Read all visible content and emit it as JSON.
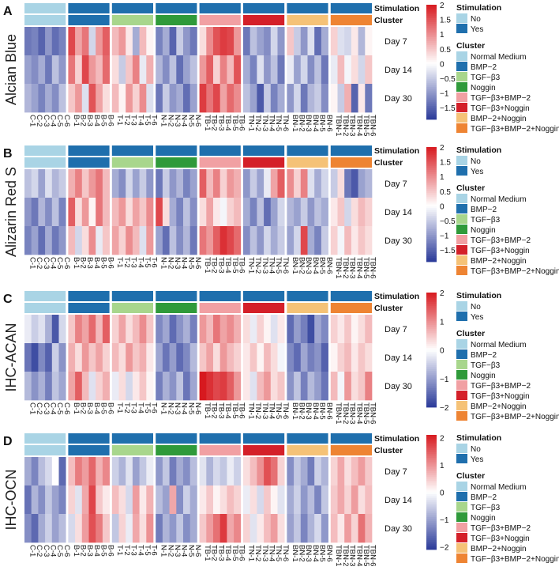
{
  "chart_data": [
    {
      "type": "heatmap",
      "panel_letter": "A",
      "ylabel": "Alcian Blue",
      "rows": [
        "Day 7",
        "Day 14",
        "Day 30"
      ],
      "columns": [
        "C-1",
        "C-2",
        "C-3",
        "C-4",
        "C-5",
        "C-6",
        "B-1",
        "B-2",
        "B-3",
        "B-4",
        "B-5",
        "B-6",
        "T-1",
        "T-2",
        "T-3",
        "T-4",
        "T-5",
        "T-6",
        "N-1",
        "N-2",
        "N-3",
        "N-4",
        "N-5",
        "N-6",
        "TB-1",
        "TB-2",
        "TB-3",
        "TB-4",
        "TB-5",
        "TB-6",
        "TN-1",
        "TN-2",
        "TN-3",
        "TN-4",
        "TN-5",
        "TN-6",
        "BN-1",
        "BN-2",
        "BN-3",
        "BN-4",
        "BN-5",
        "BN-6",
        "TBN-1",
        "TBN-2",
        "TBN-3",
        "TBN-4",
        "TBN-5",
        "TBN-6"
      ],
      "values": [
        [
          -1.3,
          -1.2,
          -1.5,
          -1.0,
          -1.4,
          -1.2,
          1.6,
          0.8,
          1.2,
          -0.4,
          0.9,
          1.4,
          0.6,
          0.9,
          0.2,
          -0.8,
          0.6,
          0.1,
          -1.2,
          -0.8,
          -1.5,
          -0.5,
          -1.0,
          -1.3,
          0.3,
          1.0,
          1.5,
          1.7,
          1.6,
          0.9,
          -1.3,
          -0.6,
          -0.9,
          -1.1,
          -0.4,
          -1.0,
          0.5,
          -0.5,
          -1.0,
          -0.3,
          -1.4,
          -0.8,
          0.4,
          -0.3,
          -0.4,
          0.2,
          -0.7,
          0.1
        ],
        [
          -0.9,
          -1.1,
          -0.8,
          -1.3,
          -0.6,
          -1.0,
          1.2,
          0.4,
          1.6,
          0.9,
          0.6,
          1.3,
          0.3,
          -0.5,
          0.5,
          1.1,
          -0.2,
          0.7,
          -0.7,
          -1.1,
          -0.6,
          -1.4,
          -0.9,
          -0.6,
          0.9,
          1.4,
          0.4,
          1.1,
          0.6,
          1.5,
          -0.8,
          -1.2,
          -0.3,
          -1.0,
          -0.6,
          -1.3,
          -0.2,
          -0.9,
          -0.4,
          -1.1,
          -0.6,
          -1.3,
          -0.2,
          0.6,
          -0.1,
          0.3,
          -0.4,
          0.5
        ],
        [
          -0.7,
          -0.9,
          -1.2,
          -0.8,
          -1.1,
          -0.6,
          0.5,
          0.9,
          -0.3,
          1.5,
          0.8,
          0.3,
          0.6,
          0.1,
          0.9,
          0.4,
          1.0,
          -0.3,
          -1.3,
          -0.5,
          -1.0,
          -0.8,
          -1.4,
          -0.9,
          1.7,
          1.2,
          1.6,
          0.8,
          1.3,
          1.0,
          -0.6,
          -0.9,
          -1.6,
          -0.5,
          -1.2,
          -0.8,
          -1.0,
          -0.4,
          -1.3,
          -0.7,
          -0.5,
          -1.1,
          0.1,
          -0.5,
          0.7,
          -1.5,
          0.2,
          -1.3
        ]
      ],
      "colorbar": {
        "min": -1.9,
        "max": 2.0,
        "ticks": [
          2,
          1.5,
          1,
          0.5,
          0,
          -0.5,
          -1,
          -1.5
        ],
        "tick_labels": [
          "2",
          "1.5",
          "1",
          "0.5",
          "0",
          "−0.5",
          "−1",
          "−1.5"
        ]
      }
    },
    {
      "type": "heatmap",
      "panel_letter": "B",
      "ylabel": "Alizarin Red S",
      "rows": [
        "Day 7",
        "Day 14",
        "Day 30"
      ],
      "columns": [
        "C-1",
        "C-2",
        "C-3",
        "C-4",
        "C-5",
        "C-6",
        "B-1",
        "B-2",
        "B-3",
        "B-4",
        "B-5",
        "B-6",
        "T-1",
        "T-2",
        "T-3",
        "T-4",
        "T-5",
        "T-6",
        "N-1",
        "N-2",
        "N-3",
        "N-4",
        "N-5",
        "N-6",
        "TB-1",
        "TB-2",
        "TB-3",
        "TB-4",
        "TB-5",
        "TB-6",
        "TN-1",
        "TN-2",
        "TN-3",
        "TN-4",
        "TN-5",
        "TN-6",
        "BN-1",
        "BN-2",
        "BN-3",
        "BN-4",
        "BN-5",
        "BN-6",
        "TBN-1",
        "TBN-2",
        "TBN-3",
        "TBN-4",
        "TBN-5",
        "TBN-6"
      ],
      "values": [
        [
          -0.6,
          -0.4,
          -0.9,
          -0.3,
          -0.7,
          -0.5,
          0.7,
          1.1,
          0.5,
          0.9,
          1.2,
          0.6,
          -0.8,
          -1.1,
          -0.4,
          -0.9,
          -0.5,
          -1.0,
          -1.3,
          -0.5,
          -1.0,
          -0.7,
          -1.2,
          -0.9,
          1.4,
          0.6,
          1.1,
          0.4,
          0.9,
          0.7,
          -1.0,
          -0.5,
          -0.9,
          -0.2,
          0.8,
          1.4,
          1.0,
          0.4,
          1.1,
          -0.3,
          -0.8,
          -0.4,
          -0.5,
          0.3,
          -1.3,
          -1.6,
          -0.9,
          -0.7
        ],
        [
          -1.0,
          -1.3,
          -0.7,
          -1.1,
          -0.6,
          -1.2,
          1.4,
          0.3,
          0.9,
          0.1,
          1.2,
          0.6,
          0.6,
          0.9,
          0.3,
          0.8,
          0.5,
          1.0,
          1.6,
          0.3,
          -0.8,
          -1.2,
          -0.6,
          -1.1,
          0.3,
          0.8,
          0.2,
          -0.1,
          0.4,
          0.6,
          -0.8,
          -1.2,
          -0.6,
          -1.4,
          -0.9,
          -0.4,
          -0.7,
          -0.9,
          -0.5,
          -1.0,
          -0.6,
          -0.8,
          0.2,
          0.5,
          -0.4,
          0.3,
          0.6,
          0.4
        ],
        [
          -1.2,
          -0.9,
          -1.4,
          -0.8,
          -1.3,
          -1.0,
          0.6,
          -0.4,
          0.3,
          1.0,
          -0.2,
          0.5,
          0.8,
          0.4,
          1.0,
          0.6,
          -0.3,
          0.9,
          -0.9,
          -1.4,
          -0.6,
          -1.1,
          -0.7,
          -1.3,
          1.2,
          0.9,
          1.4,
          1.8,
          1.6,
          1.3,
          -1.1,
          -0.6,
          -1.0,
          -0.4,
          -0.8,
          -0.5,
          -0.9,
          -0.4,
          1.6,
          -0.8,
          -1.2,
          -0.5,
          0.4,
          -0.1,
          0.6,
          0.2,
          0.5,
          0.3
        ]
      ],
      "colorbar": {
        "min": -1.9,
        "max": 2.0,
        "ticks": [
          2,
          1.5,
          1,
          0.5,
          0,
          -0.5,
          -1,
          -1.5
        ],
        "tick_labels": [
          "2",
          "1.5",
          "1",
          "0.5",
          "0",
          "−0.5",
          "−1",
          "−1.5"
        ]
      }
    },
    {
      "type": "heatmap",
      "panel_letter": "C",
      "ylabel": "IHC-ACAN",
      "rows": [
        "Day 7",
        "Day 14",
        "Day 30"
      ],
      "columns": [
        "C-1",
        "C-2",
        "C-3",
        "C-4",
        "C-5",
        "C-6",
        "B-1",
        "B-2",
        "B-3",
        "B-4",
        "B-5",
        "B-6",
        "T-1",
        "T-2",
        "T-3",
        "T-4",
        "T-5",
        "T-6",
        "N-1",
        "N-2",
        "N-3",
        "N-4",
        "N-5",
        "N-6",
        "TB-1",
        "TB-2",
        "TB-3",
        "TB-4",
        "TB-5",
        "TB-6",
        "TN-1",
        "TN-2",
        "TN-3",
        "TN-4",
        "TN-5",
        "TN-6",
        "BN-1",
        "BN-2",
        "BN-3",
        "BN-4",
        "BN-5",
        "BN-6",
        "TBN-1",
        "TBN-2",
        "TBN-3",
        "TBN-4",
        "TBN-5",
        "TBN-6"
      ],
      "values": [
        [
          -0.2,
          -0.5,
          -0.3,
          -0.8,
          -1.7,
          -0.4,
          0.5,
          1.1,
          0.8,
          1.3,
          0.6,
          1.4,
          0.4,
          0.8,
          0.3,
          0.6,
          1.0,
          0.5,
          -1.2,
          -0.9,
          -1.5,
          -1.1,
          -0.8,
          -1.3,
          0.9,
          0.6,
          1.2,
          0.8,
          1.0,
          0.7,
          0.3,
          -0.2,
          0.4,
          0.1,
          -0.3,
          0.2,
          -1.5,
          -1.0,
          -1.3,
          -1.8,
          -0.9,
          -1.2,
          0.4,
          0.2,
          0.5,
          0.1,
          0.3,
          0.6
        ],
        [
          -1.4,
          -1.8,
          -1.2,
          -1.6,
          -0.5,
          -1.1,
          0.7,
          0.3,
          0.9,
          0.5,
          0.8,
          0.4,
          0.6,
          0.3,
          0.9,
          0.5,
          0.7,
          0.2,
          -0.9,
          -1.4,
          -1.0,
          -1.5,
          -1.2,
          -0.7,
          0.5,
          0.8,
          0.3,
          0.9,
          0.6,
          0.4,
          0.2,
          0.5,
          0.1,
          0.6,
          0.3,
          -0.1,
          -1.2,
          -1.5,
          -0.9,
          -1.3,
          -1.1,
          -1.6,
          0.1,
          0.4,
          0.6,
          0.2,
          0.5,
          0.3
        ],
        [
          -0.7,
          -1.1,
          -0.8,
          -1.3,
          -0.6,
          -0.9,
          0.8,
          1.4,
          0.6,
          -0.3,
          0.4,
          0.7,
          -0.2,
          0.3,
          -0.4,
          0.2,
          0.5,
          0.1,
          -1.3,
          -0.8,
          -1.1,
          -0.6,
          -1.4,
          -0.9,
          2.0,
          1.8,
          1.6,
          1.7,
          1.4,
          0.9,
          0.2,
          -0.3,
          0.6,
          0.9,
          0.3,
          0.5,
          -1.1,
          -0.6,
          -1.3,
          -0.7,
          -1.0,
          -1.4,
          0.6,
          -0.1,
          0.9,
          0.3,
          0.5,
          1.1
        ]
      ],
      "colorbar": {
        "min": -2.0,
        "max": 2.0,
        "ticks": [
          2,
          1,
          0,
          -1,
          -2
        ],
        "tick_labels": [
          "2",
          "1",
          "0",
          "−1",
          "−2"
        ]
      }
    },
    {
      "type": "heatmap",
      "panel_letter": "D",
      "ylabel": "IHC-OCN",
      "rows": [
        "Day 7",
        "Day 14",
        "Day 30"
      ],
      "columns": [
        "C-1",
        "C-2",
        "C-3",
        "C-4",
        "C-5",
        "C-6",
        "B-1",
        "B-2",
        "B-3",
        "B-4",
        "B-5",
        "B-6",
        "T-1",
        "T-2",
        "T-3",
        "T-4",
        "T-5",
        "T-6",
        "N-1",
        "N-2",
        "N-3",
        "N-4",
        "N-5",
        "N-6",
        "TB-1",
        "TB-2",
        "TB-3",
        "TB-4",
        "TB-5",
        "TB-6",
        "TN-1",
        "TN-2",
        "TN-3",
        "TN-4",
        "TN-5",
        "TN-6",
        "BN-1",
        "BN-2",
        "BN-3",
        "BN-4",
        "BN-5",
        "BN-6",
        "TBN-1",
        "TBN-2",
        "TBN-3",
        "TBN-4",
        "TBN-5",
        "TBN-6"
      ],
      "values": [
        [
          -0.9,
          -1.3,
          -0.7,
          -0.4,
          0.0,
          -1.6,
          0.6,
          1.2,
          0.9,
          1.4,
          0.7,
          1.1,
          -0.5,
          -0.8,
          -0.3,
          -1.0,
          -0.6,
          -0.2,
          -1.1,
          -0.6,
          -1.4,
          -0.9,
          -1.2,
          -0.7,
          -0.3,
          -0.8,
          -0.4,
          -0.6,
          -0.2,
          -0.5,
          0.3,
          0.6,
          1.0,
          1.6,
          1.3,
          0.4,
          -1.2,
          -0.6,
          -0.9,
          -1.4,
          -0.5,
          -0.8,
          0.4,
          0.8,
          0.3,
          0.6,
          0.9,
          0.5
        ],
        [
          -1.5,
          -0.8,
          -1.2,
          -0.6,
          -1.0,
          -1.3,
          0.4,
          -0.3,
          0.8,
          1.7,
          0.5,
          0.2,
          0.6,
          0.3,
          -0.4,
          0.9,
          0.2,
          0.7,
          -0.7,
          -1.0,
          0.8,
          -1.2,
          -0.5,
          -0.9,
          0.2,
          0.5,
          0.1,
          0.3,
          0.6,
          0.4,
          -0.2,
          0.3,
          -0.4,
          0.5,
          0.1,
          -0.3,
          -0.9,
          -0.5,
          -1.1,
          -0.7,
          -1.3,
          -0.6,
          0.5,
          0.8,
          0.4,
          0.9,
          0.3,
          0.6
        ],
        [
          -1.2,
          -1.6,
          -0.9,
          -0.5,
          -1.0,
          -0.7,
          -0.4,
          0.3,
          0.9,
          1.6,
          1.2,
          0.5,
          -0.6,
          0.4,
          -0.2,
          0.8,
          0.3,
          1.0,
          -1.4,
          -0.8,
          -1.1,
          -0.6,
          -1.2,
          -0.9,
          0.5,
          0.9,
          1.3,
          1.8,
          0.8,
          1.1,
          0.4,
          -0.3,
          0.2,
          0.6,
          0.9,
          0.3,
          -1.0,
          -0.6,
          -1.3,
          -0.8,
          -0.4,
          -1.1,
          0.6,
          0.2,
          0.9,
          0.4,
          1.3,
          0.7
        ]
      ],
      "colorbar": {
        "min": -2.1,
        "max": 2.1,
        "ticks": [
          2,
          1,
          0,
          -1,
          -2
        ],
        "tick_labels": [
          "2",
          "1",
          "0",
          "−1",
          "−2"
        ]
      }
    }
  ],
  "annotations": {
    "stimulation_label": "Stimulation",
    "cluster_label": "Cluster",
    "stimulation_colors": {
      "No": "#a9d4e5",
      "Yes": "#1f6fad"
    },
    "groups": [
      {
        "name": "Normal Medium",
        "stimulation": "No",
        "color": "#a9d4e5"
      },
      {
        "name": "BMP−2",
        "stimulation": "Yes",
        "color": "#1f6fad"
      },
      {
        "name": "TGF−β3",
        "stimulation": "Yes",
        "color": "#a8d68c"
      },
      {
        "name": "Noggin",
        "stimulation": "Yes",
        "color": "#2f9a3a"
      },
      {
        "name": "TGF−β3+BMP−2",
        "stimulation": "Yes",
        "color": "#f1a0a3"
      },
      {
        "name": "TGF−β3+Noggin",
        "stimulation": "Yes",
        "color": "#d42029"
      },
      {
        "name": "BMP−2+Noggin",
        "stimulation": "Yes",
        "color": "#f5c277"
      },
      {
        "name": "TGF−β3+BMP−2+Noggin",
        "stimulation": "Yes",
        "color": "#ee8433"
      }
    ]
  },
  "legend": {
    "stimulation_title": "Stimulation",
    "stimulation_items": [
      "No",
      "Yes"
    ],
    "cluster_title": "Cluster"
  },
  "colors": {
    "low": "#2a3a99",
    "mid": "#ffffff",
    "high": "#d7191f"
  }
}
